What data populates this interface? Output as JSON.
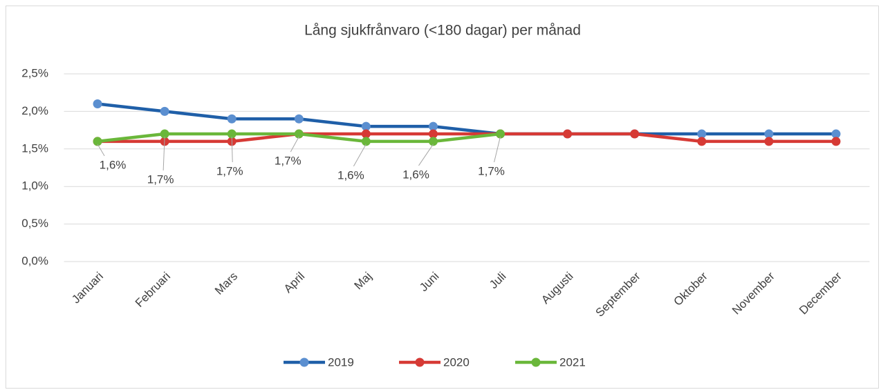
{
  "chart_data": {
    "type": "line",
    "title": "Lång sjukfrånvaro (<180 dagar) per månad",
    "categories": [
      "Januari",
      "Februari",
      "Mars",
      "April",
      "Maj",
      "Juni",
      "Juli",
      "Augusti",
      "September",
      "Oktober",
      "November",
      "December"
    ],
    "series": [
      {
        "name": "2019",
        "color": "#1f5fa8",
        "marker_color": "#5b8fd0",
        "values": [
          2.1,
          2.0,
          1.9,
          1.9,
          1.8,
          1.8,
          1.7,
          1.7,
          1.7,
          1.7,
          1.7,
          1.7
        ]
      },
      {
        "name": "2020",
        "color": "#d63a35",
        "marker_color": "#d63a35",
        "values": [
          1.6,
          1.6,
          1.6,
          1.7,
          1.7,
          1.7,
          1.7,
          1.7,
          1.7,
          1.6,
          1.6,
          1.6
        ]
      },
      {
        "name": "2021",
        "color": "#6ab73a",
        "marker_color": "#6ab73a",
        "values": [
          1.6,
          1.7,
          1.7,
          1.7,
          1.6,
          1.6,
          1.7,
          null,
          null,
          null,
          null,
          null
        ],
        "value_labels": [
          "1,6%",
          "1,7%",
          "1,7%",
          "1,7%",
          "1,6%",
          "1,6%",
          "1,7%",
          null,
          null,
          null,
          null,
          null
        ]
      }
    ],
    "ylim": [
      0,
      2.5
    ],
    "yticks": [
      {
        "value": 0,
        "label": "0,0%"
      },
      {
        "value": 0.5,
        "label": "0,5%"
      },
      {
        "value": 1.0,
        "label": "1,0%"
      },
      {
        "value": 1.5,
        "label": "1,5%"
      },
      {
        "value": 2.0,
        "label": "2,0%"
      },
      {
        "value": 2.5,
        "label": "2,5%"
      }
    ],
    "grid": true,
    "legend": "bottom"
  }
}
